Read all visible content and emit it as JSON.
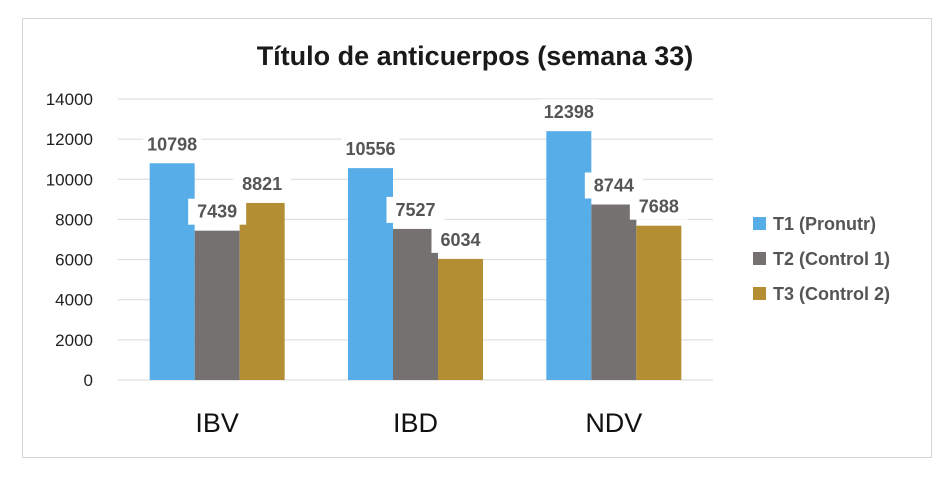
{
  "chart_data": {
    "type": "bar",
    "title": "Título de anticuerpos (semana 33)",
    "categories": [
      "IBV",
      "IBD",
      "NDV"
    ],
    "series": [
      {
        "name": "T1 (Pronutr)",
        "values": [
          10798,
          10556,
          12398
        ],
        "color": "#56ade8"
      },
      {
        "name": "T2 (Control 1)",
        "values": [
          7439,
          7527,
          8744
        ],
        "color": "#767171"
      },
      {
        "name": "T3 (Control 2)",
        "values": [
          8821,
          6034,
          7688
        ],
        "color": "#b48e32"
      }
    ],
    "yticks": [
      "0",
      "2000",
      "4000",
      "6000",
      "8000",
      "10000",
      "12000",
      "14000"
    ],
    "ylim": [
      0,
      14000
    ],
    "grid": true,
    "legend_position": "right",
    "xlabel": "",
    "ylabel": ""
  }
}
